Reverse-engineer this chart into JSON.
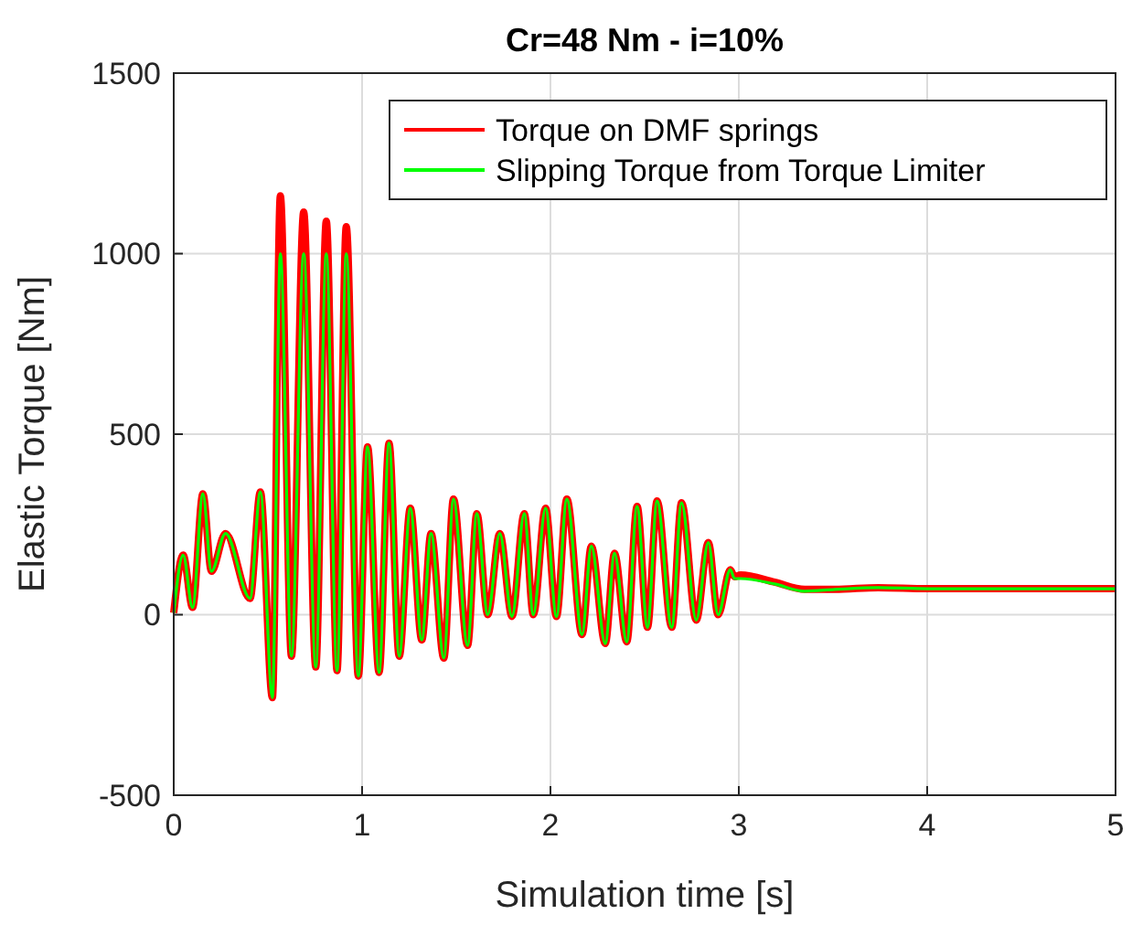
{
  "chart_data": {
    "type": "line",
    "title": "Cr=48 Nm - i=10%",
    "xlabel": "Simulation time [s]",
    "ylabel": "Elastic Torque [Nm]",
    "x": [
      0,
      0.05,
      0.1,
      0.155,
      0.2,
      0.275,
      0.405,
      0.46,
      0.524,
      0.566,
      0.625,
      0.69,
      0.754,
      0.81,
      0.867,
      0.916,
      0.98,
      1.029,
      1.09,
      1.143,
      1.197,
      1.256,
      1.317,
      1.366,
      1.434,
      1.485,
      1.56,
      1.609,
      1.667,
      1.731,
      1.796,
      1.861,
      1.909,
      1.974,
      2.032,
      2.087,
      2.168,
      2.217,
      2.291,
      2.34,
      2.405,
      2.46,
      2.515,
      2.566,
      2.644,
      2.696,
      2.774,
      2.838,
      2.89,
      2.955,
      2.977,
      3.01,
      3.19,
      3.35,
      3.51,
      3.74,
      4.0,
      5.0
    ],
    "series": [
      {
        "name": "Torque on DMF springs",
        "color": "#ff0000",
        "values": [
          5,
          165,
          20,
          335,
          120,
          225,
          45,
          340,
          -230,
          1160,
          -115,
          1115,
          -145,
          1090,
          -155,
          1075,
          -170,
          465,
          -160,
          475,
          -115,
          295,
          -70,
          225,
          -120,
          320,
          -85,
          280,
          0,
          225,
          -5,
          280,
          0,
          295,
          -5,
          320,
          -55,
          190,
          -80,
          170,
          -75,
          300,
          -35,
          315,
          -35,
          310,
          -15,
          200,
          0,
          125,
          105,
          110,
          90,
          70,
          70,
          75,
          72,
          72
        ]
      },
      {
        "name": "Slipping Torque from Torque Limiter",
        "color": "#00ff00",
        "values": [
          5,
          165,
          20,
          335,
          120,
          225,
          45,
          340,
          -230,
          1000,
          -115,
          1000,
          -145,
          1000,
          -155,
          1000,
          -170,
          465,
          -160,
          475,
          -115,
          295,
          -70,
          225,
          -120,
          320,
          -85,
          280,
          0,
          225,
          -5,
          280,
          0,
          295,
          -5,
          320,
          -55,
          190,
          -80,
          170,
          -75,
          300,
          -35,
          315,
          -35,
          310,
          -15,
          200,
          0,
          125,
          100,
          100,
          85,
          65,
          70,
          75,
          72,
          72
        ]
      }
    ],
    "xlim": [
      0,
      5
    ],
    "xticks": [
      0,
      1,
      2,
      3,
      4,
      5
    ],
    "ylim": [
      -500,
      1500
    ],
    "yticks": [
      -500,
      0,
      500,
      1000,
      1500
    ],
    "grid": true,
    "legend": "top right",
    "line_style": "solid",
    "marker": "none"
  }
}
